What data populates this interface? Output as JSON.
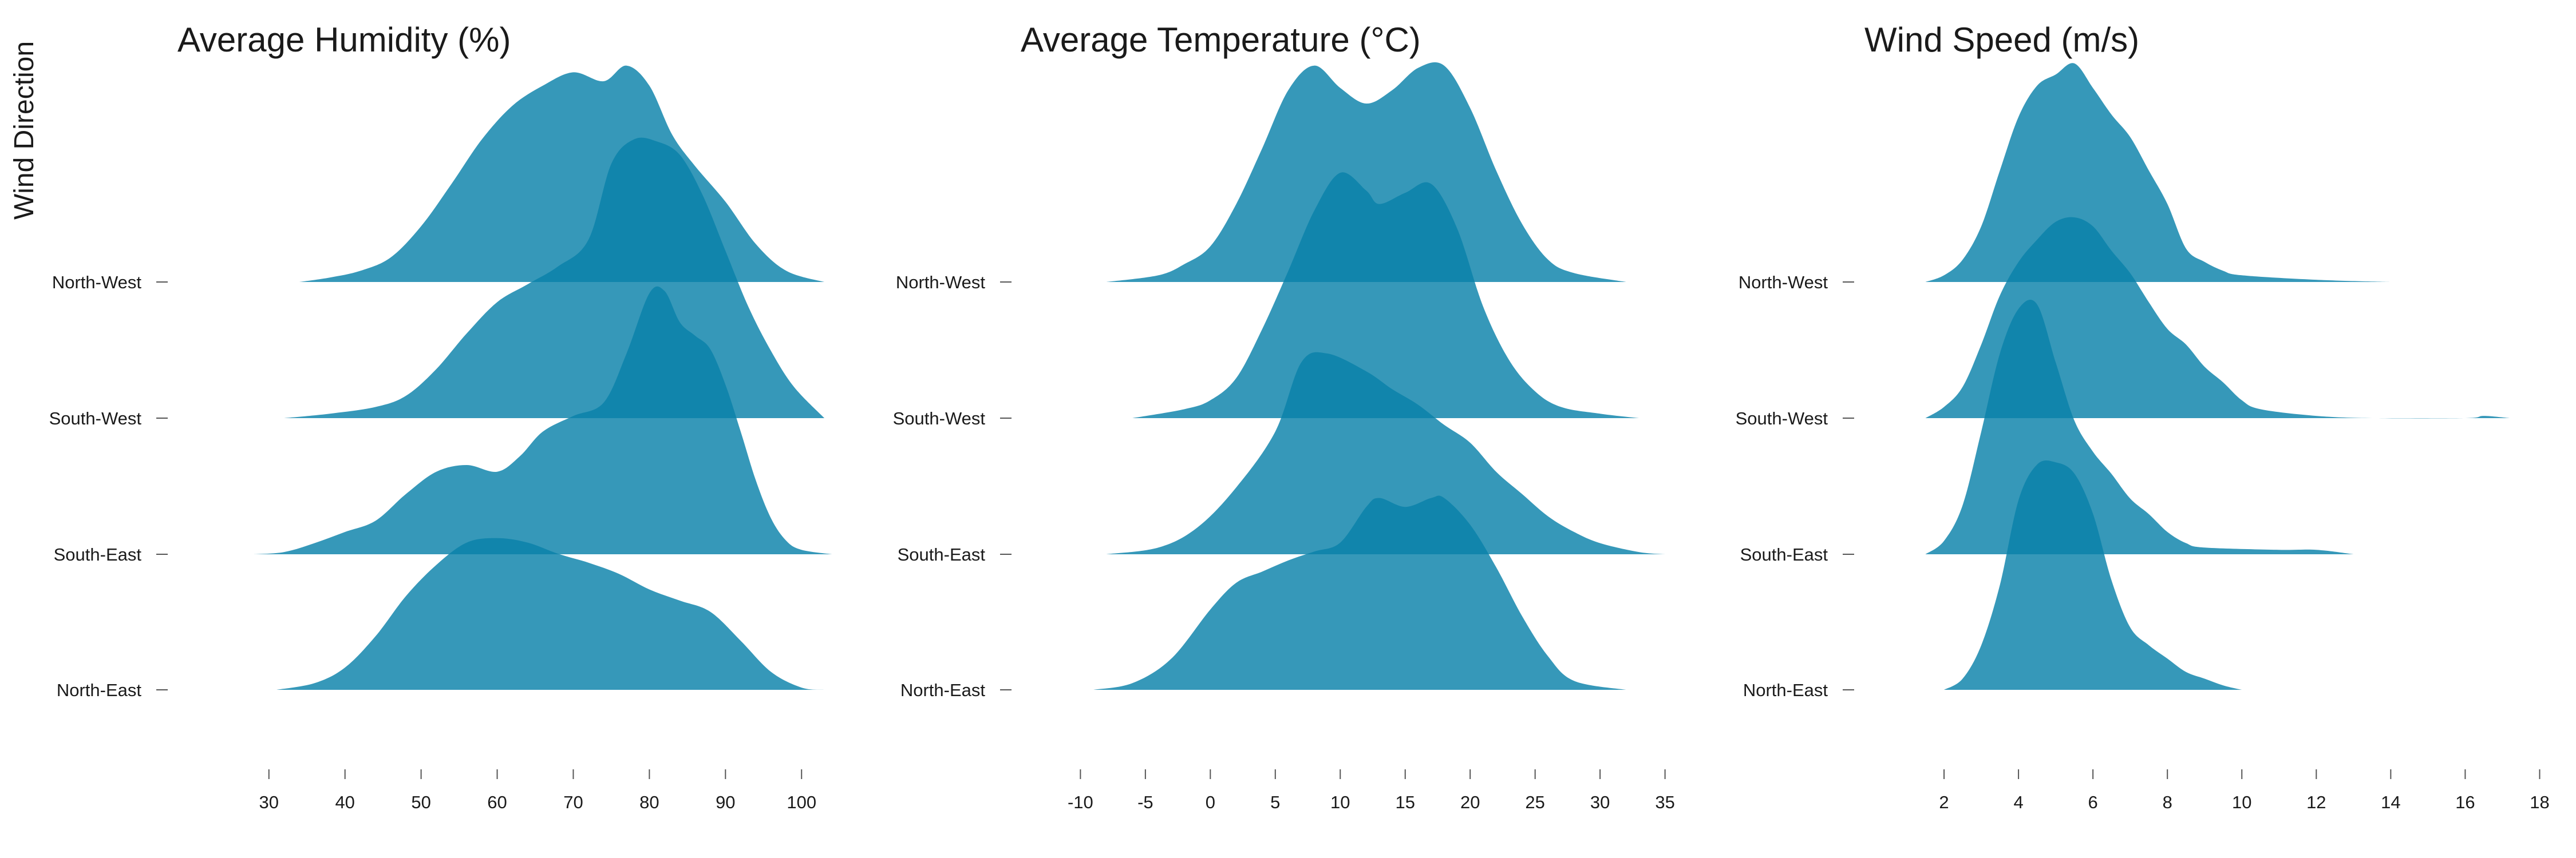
{
  "y_axis_label": "Wind Direction",
  "categories": [
    "North-West",
    "South-West",
    "South-East",
    "North-East"
  ],
  "fill_color": "#0a81aa",
  "chart_data": [
    {
      "type": "ridgeline",
      "title": "Average Humidity (%)",
      "x_ticks": [
        30,
        40,
        50,
        60,
        70,
        80,
        90,
        100
      ],
      "xlim": [
        24,
        106
      ],
      "series": [
        {
          "category": "North-West",
          "density": [
            [
              34,
              0
            ],
            [
              38,
              0.02
            ],
            [
              42,
              0.05
            ],
            [
              46,
              0.11
            ],
            [
              50,
              0.25
            ],
            [
              54,
              0.44
            ],
            [
              58,
              0.64
            ],
            [
              62,
              0.79
            ],
            [
              66,
              0.88
            ],
            [
              70,
              0.94
            ],
            [
              74,
              0.9
            ],
            [
              77,
              0.97
            ],
            [
              80,
              0.88
            ],
            [
              83,
              0.66
            ],
            [
              86,
              0.52
            ],
            [
              90,
              0.36
            ],
            [
              94,
              0.17
            ],
            [
              98,
              0.05
            ],
            [
              103,
              0
            ]
          ]
        },
        {
          "category": "South-West",
          "density": [
            [
              32,
              0
            ],
            [
              38,
              0.02
            ],
            [
              44,
              0.05
            ],
            [
              48,
              0.1
            ],
            [
              52,
              0.22
            ],
            [
              56,
              0.38
            ],
            [
              60,
              0.52
            ],
            [
              64,
              0.6
            ],
            [
              68,
              0.68
            ],
            [
              72,
              0.8
            ],
            [
              75,
              1.14
            ],
            [
              78,
              1.25
            ],
            [
              81,
              1.24
            ],
            [
              84,
              1.18
            ],
            [
              87,
              1.0
            ],
            [
              90,
              0.75
            ],
            [
              93,
              0.5
            ],
            [
              96,
              0.3
            ],
            [
              99,
              0.14
            ],
            [
              103,
              0
            ]
          ]
        },
        {
          "category": "South-East",
          "density": [
            [
              28,
              0
            ],
            [
              32,
              0.01
            ],
            [
              36,
              0.05
            ],
            [
              40,
              0.1
            ],
            [
              44,
              0.15
            ],
            [
              48,
              0.27
            ],
            [
              52,
              0.37
            ],
            [
              56,
              0.4
            ],
            [
              60,
              0.37
            ],
            [
              63,
              0.44
            ],
            [
              66,
              0.55
            ],
            [
              70,
              0.62
            ],
            [
              74,
              0.68
            ],
            [
              77,
              0.9
            ],
            [
              80,
              1.17
            ],
            [
              82,
              1.18
            ],
            [
              84,
              1.04
            ],
            [
              86,
              0.98
            ],
            [
              88,
              0.92
            ],
            [
              90,
              0.76
            ],
            [
              92,
              0.55
            ],
            [
              94,
              0.33
            ],
            [
              96,
              0.16
            ],
            [
              98,
              0.06
            ],
            [
              100,
              0.02
            ],
            [
              104,
              0
            ]
          ]
        },
        {
          "category": "North-East",
          "density": [
            [
              31,
              0
            ],
            [
              36,
              0.03
            ],
            [
              40,
              0.1
            ],
            [
              44,
              0.24
            ],
            [
              48,
              0.42
            ],
            [
              52,
              0.56
            ],
            [
              56,
              0.66
            ],
            [
              60,
              0.68
            ],
            [
              64,
              0.66
            ],
            [
              68,
              0.61
            ],
            [
              72,
              0.57
            ],
            [
              76,
              0.52
            ],
            [
              80,
              0.45
            ],
            [
              84,
              0.4
            ],
            [
              88,
              0.35
            ],
            [
              92,
              0.22
            ],
            [
              96,
              0.08
            ],
            [
              100,
              0.01
            ],
            [
              103,
              0
            ]
          ]
        }
      ]
    },
    {
      "type": "ridgeline",
      "title": "Average Temperature (°C)",
      "x_ticks": [
        -10,
        -5,
        0,
        5,
        10,
        15,
        20,
        25,
        30,
        35
      ],
      "xlim": [
        -12,
        37
      ],
      "series": [
        {
          "category": "North-West",
          "density": [
            [
              -8,
              0
            ],
            [
              -4,
              0.03
            ],
            [
              -2,
              0.08
            ],
            [
              0,
              0.16
            ],
            [
              2,
              0.35
            ],
            [
              4,
              0.6
            ],
            [
              6,
              0.86
            ],
            [
              8,
              0.97
            ],
            [
              10,
              0.87
            ],
            [
              12,
              0.8
            ],
            [
              14,
              0.86
            ],
            [
              16,
              0.96
            ],
            [
              18,
              0.97
            ],
            [
              20,
              0.78
            ],
            [
              22,
              0.5
            ],
            [
              24,
              0.26
            ],
            [
              26,
              0.1
            ],
            [
              28,
              0.04
            ],
            [
              32,
              0
            ]
          ]
        },
        {
          "category": "South-West",
          "density": [
            [
              -6,
              0
            ],
            [
              -2,
              0.04
            ],
            [
              0,
              0.08
            ],
            [
              2,
              0.18
            ],
            [
              4,
              0.4
            ],
            [
              6,
              0.66
            ],
            [
              8,
              0.93
            ],
            [
              10,
              1.1
            ],
            [
              12,
              1.02
            ],
            [
              13,
              0.96
            ],
            [
              15,
              1.01
            ],
            [
              17,
              1.05
            ],
            [
              19,
              0.85
            ],
            [
              21,
              0.5
            ],
            [
              23,
              0.26
            ],
            [
              25,
              0.12
            ],
            [
              27,
              0.05
            ],
            [
              30,
              0.02
            ],
            [
              33,
              0
            ]
          ]
        },
        {
          "category": "South-East",
          "density": [
            [
              -8,
              0
            ],
            [
              -4,
              0.03
            ],
            [
              -1,
              0.12
            ],
            [
              2,
              0.3
            ],
            [
              5,
              0.55
            ],
            [
              7,
              0.86
            ],
            [
              9,
              0.9
            ],
            [
              12,
              0.82
            ],
            [
              14,
              0.74
            ],
            [
              16,
              0.67
            ],
            [
              18,
              0.58
            ],
            [
              20,
              0.5
            ],
            [
              22,
              0.37
            ],
            [
              24,
              0.27
            ],
            [
              26,
              0.17
            ],
            [
              28,
              0.1
            ],
            [
              30,
              0.05
            ],
            [
              33,
              0.01
            ],
            [
              35,
              0
            ]
          ]
        },
        {
          "category": "North-East",
          "density": [
            [
              -9,
              0
            ],
            [
              -6,
              0.03
            ],
            [
              -3,
              0.14
            ],
            [
              0,
              0.36
            ],
            [
              2,
              0.48
            ],
            [
              4,
              0.53
            ],
            [
              6,
              0.58
            ],
            [
              8,
              0.62
            ],
            [
              10,
              0.66
            ],
            [
              12,
              0.82
            ],
            [
              13,
              0.86
            ],
            [
              15,
              0.82
            ],
            [
              17,
              0.86
            ],
            [
              18,
              0.86
            ],
            [
              20,
              0.74
            ],
            [
              22,
              0.55
            ],
            [
              24,
              0.33
            ],
            [
              26,
              0.15
            ],
            [
              28,
              0.04
            ],
            [
              32,
              0
            ]
          ]
        }
      ]
    },
    {
      "type": "ridgeline",
      "title": "Wind Speed (m/s)",
      "x_ticks": [
        2,
        4,
        6,
        8,
        10,
        12,
        14,
        16,
        18
      ],
      "xlim": [
        0.8,
        18.3
      ],
      "series": [
        {
          "category": "North-West",
          "density": [
            [
              1.5,
              0
            ],
            [
              2,
              0.03
            ],
            [
              2.5,
              0.1
            ],
            [
              3,
              0.25
            ],
            [
              3.5,
              0.5
            ],
            [
              4,
              0.74
            ],
            [
              4.5,
              0.88
            ],
            [
              5,
              0.93
            ],
            [
              5.5,
              0.98
            ],
            [
              6,
              0.87
            ],
            [
              6.5,
              0.75
            ],
            [
              7,
              0.65
            ],
            [
              7.5,
              0.5
            ],
            [
              8,
              0.35
            ],
            [
              8.5,
              0.15
            ],
            [
              9,
              0.09
            ],
            [
              9.5,
              0.05
            ],
            [
              10,
              0.03
            ],
            [
              12,
              0.01
            ],
            [
              14,
              0
            ]
          ]
        },
        {
          "category": "South-West",
          "density": [
            [
              1.5,
              0
            ],
            [
              2,
              0.05
            ],
            [
              2.5,
              0.14
            ],
            [
              3,
              0.33
            ],
            [
              3.5,
              0.55
            ],
            [
              4,
              0.7
            ],
            [
              4.5,
              0.8
            ],
            [
              5,
              0.88
            ],
            [
              5.5,
              0.9
            ],
            [
              6,
              0.86
            ],
            [
              6.5,
              0.75
            ],
            [
              7,
              0.65
            ],
            [
              7.5,
              0.52
            ],
            [
              8,
              0.4
            ],
            [
              8.5,
              0.33
            ],
            [
              9,
              0.23
            ],
            [
              9.5,
              0.16
            ],
            [
              10,
              0.08
            ],
            [
              10.5,
              0.04
            ],
            [
              12,
              0.01
            ],
            [
              13.5,
              0
            ],
            [
              16,
              0
            ],
            [
              16.5,
              0.01
            ],
            [
              17.2,
              0
            ]
          ]
        },
        {
          "category": "South-East",
          "density": [
            [
              1.5,
              0
            ],
            [
              2,
              0.06
            ],
            [
              2.5,
              0.22
            ],
            [
              3,
              0.55
            ],
            [
              3.5,
              0.9
            ],
            [
              4,
              1.1
            ],
            [
              4.5,
              1.12
            ],
            [
              5,
              0.86
            ],
            [
              5.5,
              0.6
            ],
            [
              6,
              0.46
            ],
            [
              6.5,
              0.36
            ],
            [
              7,
              0.25
            ],
            [
              7.5,
              0.18
            ],
            [
              8,
              0.1
            ],
            [
              8.5,
              0.05
            ],
            [
              9,
              0.03
            ],
            [
              11,
              0.02
            ],
            [
              12,
              0.02
            ],
            [
              13,
              0
            ]
          ]
        },
        {
          "category": "North-East",
          "density": [
            [
              2,
              0
            ],
            [
              2.5,
              0.05
            ],
            [
              3,
              0.2
            ],
            [
              3.5,
              0.47
            ],
            [
              4,
              0.85
            ],
            [
              4.5,
              1.01
            ],
            [
              5,
              1.02
            ],
            [
              5.5,
              0.97
            ],
            [
              6,
              0.79
            ],
            [
              6.5,
              0.49
            ],
            [
              7,
              0.28
            ],
            [
              7.5,
              0.2
            ],
            [
              8,
              0.14
            ],
            [
              8.5,
              0.08
            ],
            [
              9,
              0.05
            ],
            [
              9.5,
              0.02
            ],
            [
              10,
              0
            ]
          ]
        }
      ]
    }
  ]
}
